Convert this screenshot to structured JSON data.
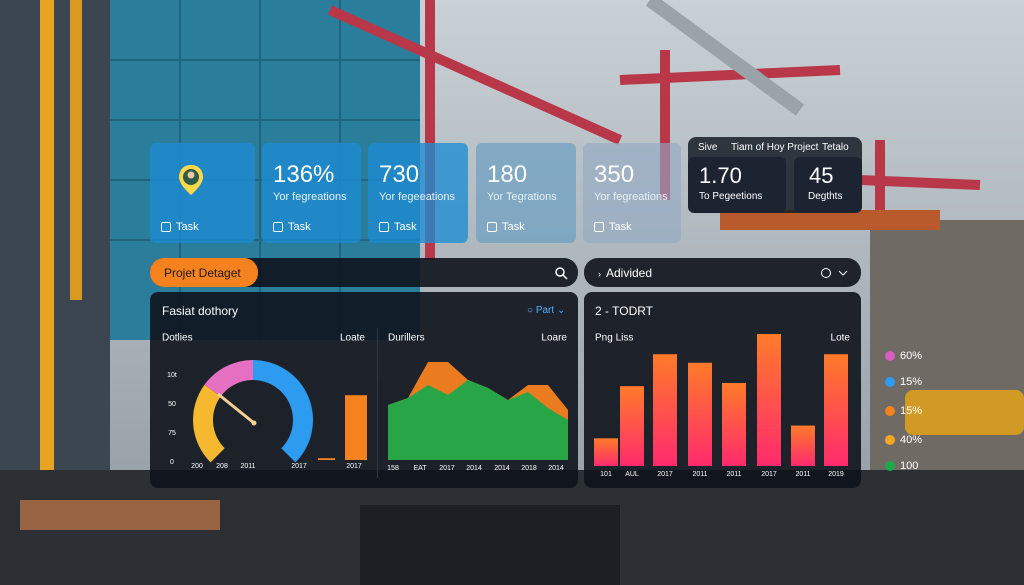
{
  "cards": [
    {
      "label": "Task"
    },
    {
      "value": "136%",
      "caption": "Yor fegreations",
      "label": "Task"
    },
    {
      "value": "730",
      "caption": "Yor fegeeations",
      "label": "Task"
    },
    {
      "value": "180",
      "caption": "Yor Tegrations",
      "label": "Task"
    },
    {
      "value": "350",
      "caption": "Yor fegreations",
      "label": "Task"
    }
  ],
  "summary": {
    "tabs": [
      "Sive",
      "Tiam of Hoy Project",
      "Tetalo"
    ],
    "cards": [
      {
        "value": "1.70",
        "caption": "To Pegeetions"
      },
      {
        "value": "45",
        "caption": "Degthts"
      }
    ]
  },
  "search": {
    "button": "Projet Detaget"
  },
  "advised": {
    "title": "Adivided"
  },
  "left_panel": {
    "title": "Fasiat dothory",
    "dropdown": "Part",
    "gauge": {
      "type": "gauge",
      "title": "Dotlies",
      "action": "Loate",
      "yticks": [
        "10t",
        "50",
        "75",
        "0"
      ],
      "xlabels": [
        "200",
        "208",
        "2011",
        "2017",
        "2017"
      ],
      "segments": [
        {
          "color": "#f5b82e",
          "value": 30
        },
        {
          "color": "#e56fc0",
          "value": 20
        },
        {
          "color": "#2d9cf0",
          "value": 50
        }
      ],
      "bars": {
        "color": "#f5821f",
        "values": [
          2,
          72
        ]
      }
    },
    "area": {
      "type": "area",
      "title": "Durillers",
      "action": "Loare",
      "xlabels": [
        "158",
        "EAT",
        "2017",
        "2014",
        "2014",
        "2018",
        "2014"
      ],
      "series": [
        {
          "color": "#f5821f",
          "values": [
            55,
            62,
            98,
            98,
            80,
            72,
            60,
            75,
            75,
            50
          ]
        },
        {
          "color": "#1ea84a",
          "values": [
            55,
            62,
            75,
            65,
            80,
            72,
            60,
            68,
            52,
            40
          ]
        }
      ]
    }
  },
  "right_panel": {
    "title": "2 - TODRT",
    "chart": {
      "type": "bar",
      "title": "Png Liss",
      "action": "Lote",
      "categories": [
        "101",
        "AUL",
        "2017",
        "2011",
        "2011",
        "2017",
        "2011",
        "2019"
      ],
      "values": [
        26,
        75,
        105,
        97,
        78,
        124,
        38,
        105
      ]
    }
  },
  "legend": [
    {
      "label": "60%",
      "color": "#d65fc0"
    },
    {
      "label": "15%",
      "color": "#2d9cf0"
    },
    {
      "label": "15%",
      "color": "#f5821f"
    },
    {
      "label": "40%",
      "color": "#f5a623"
    },
    {
      "label": "100",
      "color": "#1ea84a"
    }
  ]
}
